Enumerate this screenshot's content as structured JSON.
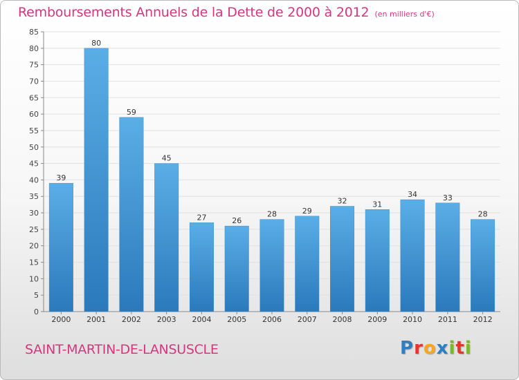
{
  "header": {
    "title": "Remboursements Annuels de la Dette de 2000 à 2012",
    "subtitle": "(en milliers d'€)"
  },
  "footer": {
    "town": "SAINT-MARTIN-DE-LANSUSCLE",
    "logo_letters": [
      "P",
      "r",
      "o",
      "x",
      "i",
      "t",
      "i"
    ],
    "logo_colors": [
      "#2d7fc1",
      "#e8352a",
      "#f5a623",
      "#2d7fc1",
      "#7ab929",
      "#e8352a",
      "#7ab929"
    ]
  },
  "colors": {
    "accent": "#d8357f",
    "bar_top": "#5aaee6",
    "bar_bottom": "#2b79bb"
  },
  "chart_data": {
    "type": "bar",
    "categories": [
      "2000",
      "2001",
      "2002",
      "2003",
      "2004",
      "2005",
      "2006",
      "2007",
      "2008",
      "2009",
      "2010",
      "2011",
      "2012"
    ],
    "values": [
      39,
      80,
      59,
      45,
      27,
      26,
      28,
      29,
      32,
      31,
      34,
      33,
      28
    ],
    "data_labels": [
      "39",
      "80",
      "59",
      "45",
      "27",
      "26",
      "28",
      "29",
      "32",
      "31",
      "34",
      "33",
      "28"
    ],
    "y_ticks": [
      "0",
      "5",
      "10",
      "15",
      "20",
      "25",
      "30",
      "35",
      "40",
      "45",
      "50",
      "55",
      "60",
      "65",
      "70",
      "75",
      "80",
      "85"
    ],
    "ylim": [
      0,
      85
    ],
    "grid": true,
    "title": "Remboursements Annuels de la Dette de 2000 à 2012",
    "xlabel": "",
    "ylabel": ""
  }
}
